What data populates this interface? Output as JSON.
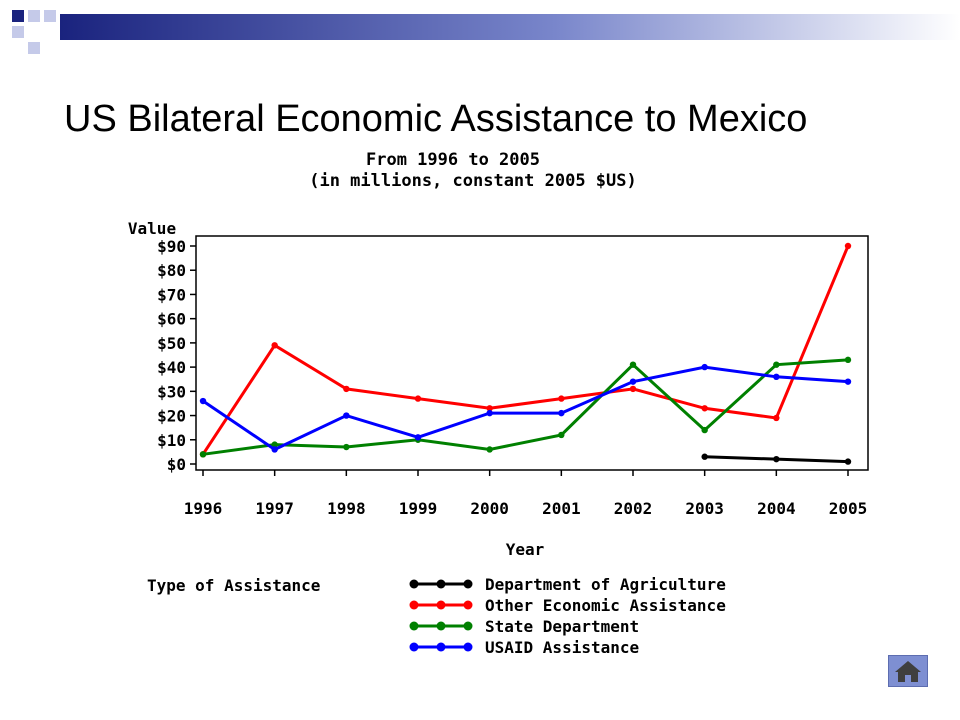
{
  "slide": {
    "title": "US Bilateral Economic Assistance to Mexico",
    "home_icon": "home-icon"
  },
  "chart_data": {
    "type": "line",
    "title": "From 1996 to 2005",
    "subtitle": "(in millions, constant 2005 $US)",
    "xlabel": "Year",
    "ylabel": "Value",
    "x": [
      1996,
      1997,
      1998,
      1999,
      2000,
      2001,
      2002,
      2003,
      2004,
      2005
    ],
    "xticks": [
      "1996",
      "1997",
      "1998",
      "1999",
      "2000",
      "2001",
      "2002",
      "2003",
      "2004",
      "2005"
    ],
    "ylim": [
      0,
      92
    ],
    "yticks": [
      0,
      10,
      20,
      30,
      40,
      50,
      60,
      70,
      80,
      90
    ],
    "ytick_labels": [
      "$0",
      "$10",
      "$20",
      "$30",
      "$40",
      "$50",
      "$60",
      "$70",
      "$80",
      "$90"
    ],
    "legend_title": "Type of Assistance",
    "legend_position": "bottom",
    "series": [
      {
        "name": "Department of Agriculture",
        "color": "#000000",
        "values": [
          null,
          null,
          null,
          null,
          null,
          null,
          null,
          3,
          2,
          1
        ]
      },
      {
        "name": "Other Economic Assistance",
        "color": "#ff0000",
        "values": [
          4,
          49,
          31,
          27,
          23,
          27,
          31,
          23,
          19,
          90
        ]
      },
      {
        "name": "State Department",
        "color": "#008000",
        "values": [
          4,
          8,
          7,
          10,
          6,
          12,
          41,
          14,
          41,
          43
        ]
      },
      {
        "name": "USAID Assistance",
        "color": "#0000ff",
        "values": [
          26,
          6,
          20,
          11,
          21,
          21,
          34,
          40,
          36,
          34
        ]
      }
    ]
  }
}
